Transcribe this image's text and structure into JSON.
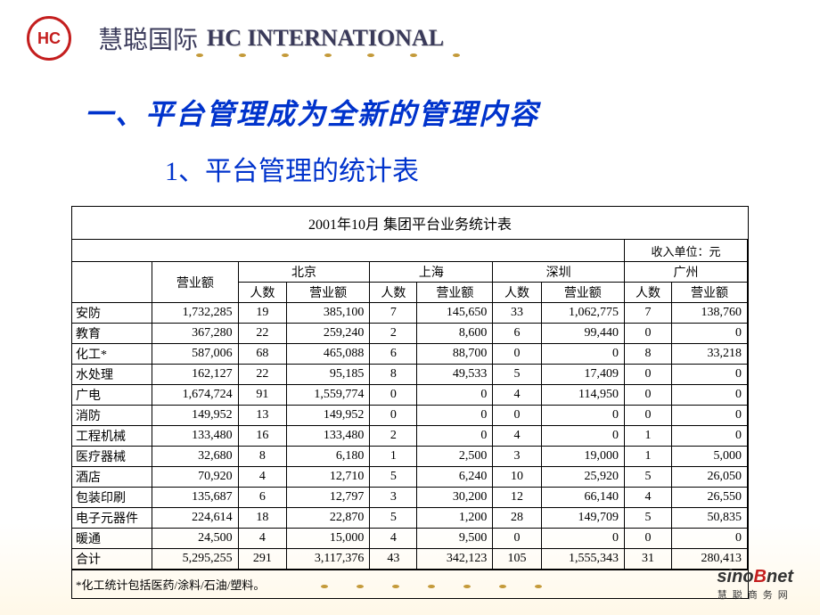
{
  "header": {
    "logo_text": "HC",
    "company_cn": "慧聪国际",
    "company_en": "HC INTERNATIONAL"
  },
  "headings": {
    "main": "一、平台管理成为全新的管理内容",
    "sub": "1、平台管理的统计表"
  },
  "table": {
    "title": "2001年10月 集团平台业务统计表",
    "unit_label": "收入单位：元",
    "col_revenue": "营业额",
    "cities": [
      "北京",
      "上海",
      "深圳",
      "广州"
    ],
    "subcols": {
      "count": "人数",
      "rev": "营业额"
    },
    "rows": [
      {
        "cat": "安防",
        "rev": "1,732,285",
        "c": [
          [
            "19",
            "385,100"
          ],
          [
            "7",
            "145,650"
          ],
          [
            "33",
            "1,062,775"
          ],
          [
            "7",
            "138,760"
          ]
        ]
      },
      {
        "cat": "教育",
        "rev": "367,280",
        "c": [
          [
            "22",
            "259,240"
          ],
          [
            "2",
            "8,600"
          ],
          [
            "6",
            "99,440"
          ],
          [
            "0",
            "0"
          ]
        ]
      },
      {
        "cat": "化工*",
        "rev": "587,006",
        "c": [
          [
            "68",
            "465,088"
          ],
          [
            "6",
            "88,700"
          ],
          [
            "0",
            "0"
          ],
          [
            "8",
            "33,218"
          ]
        ]
      },
      {
        "cat": "水处理",
        "rev": "162,127",
        "c": [
          [
            "22",
            "95,185"
          ],
          [
            "8",
            "49,533"
          ],
          [
            "5",
            "17,409"
          ],
          [
            "0",
            "0"
          ]
        ]
      },
      {
        "cat": "广电",
        "rev": "1,674,724",
        "c": [
          [
            "91",
            "1,559,774"
          ],
          [
            "0",
            "0"
          ],
          [
            "4",
            "114,950"
          ],
          [
            "0",
            "0"
          ]
        ]
      },
      {
        "cat": "消防",
        "rev": "149,952",
        "c": [
          [
            "13",
            "149,952"
          ],
          [
            "0",
            "0"
          ],
          [
            "0",
            "0"
          ],
          [
            "0",
            "0"
          ]
        ]
      },
      {
        "cat": "工程机械",
        "rev": "133,480",
        "c": [
          [
            "16",
            "133,480"
          ],
          [
            "2",
            "0"
          ],
          [
            "4",
            "0"
          ],
          [
            "1",
            "0"
          ]
        ]
      },
      {
        "cat": "医疗器械",
        "rev": "32,680",
        "c": [
          [
            "8",
            "6,180"
          ],
          [
            "1",
            "2,500"
          ],
          [
            "3",
            "19,000"
          ],
          [
            "1",
            "5,000"
          ]
        ]
      },
      {
        "cat": "酒店",
        "rev": "70,920",
        "c": [
          [
            "4",
            "12,710"
          ],
          [
            "5",
            "6,240"
          ],
          [
            "10",
            "25,920"
          ],
          [
            "5",
            "26,050"
          ]
        ]
      },
      {
        "cat": "包装印刷",
        "rev": "135,687",
        "c": [
          [
            "6",
            "12,797"
          ],
          [
            "3",
            "30,200"
          ],
          [
            "12",
            "66,140"
          ],
          [
            "4",
            "26,550"
          ]
        ]
      },
      {
        "cat": "电子元器件",
        "rev": "224,614",
        "c": [
          [
            "18",
            "22,870"
          ],
          [
            "5",
            "1,200"
          ],
          [
            "28",
            "149,709"
          ],
          [
            "5",
            "50,835"
          ]
        ]
      },
      {
        "cat": "暖通",
        "rev": "24,500",
        "c": [
          [
            "4",
            "15,000"
          ],
          [
            "4",
            "9,500"
          ],
          [
            "0",
            "0"
          ],
          [
            "0",
            "0"
          ]
        ]
      },
      {
        "cat": "合计",
        "rev": "5,295,255",
        "c": [
          [
            "291",
            "3,117,376"
          ],
          [
            "43",
            "342,123"
          ],
          [
            "105",
            "1,555,343"
          ],
          [
            "31",
            "280,413"
          ]
        ]
      }
    ],
    "footnote": "*化工统计包括医药/涂料/石油/塑料。"
  },
  "footer": {
    "en_a": "sino",
    "en_b": "B",
    "en_c": "net",
    "cn": "慧聪商务网"
  },
  "styles": {
    "heading_color": "#0033cc",
    "logo_color": "#c41e1e",
    "dot_color": "#c49a3a"
  }
}
